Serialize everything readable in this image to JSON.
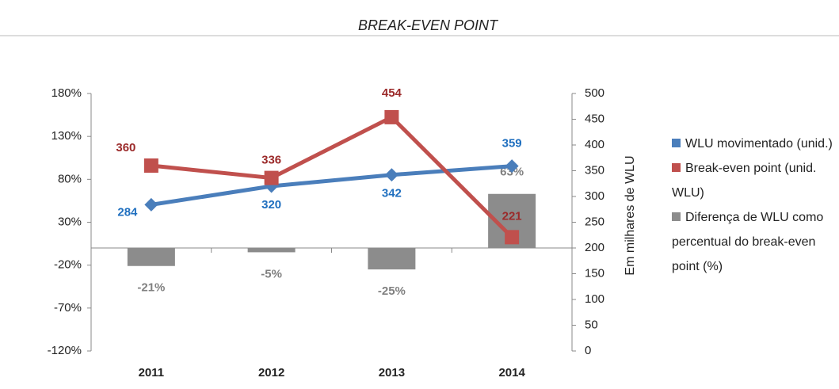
{
  "chart_data": {
    "type": "combo",
    "title": "BREAK-EVEN POINT",
    "categories": [
      "2011",
      "2012",
      "2013",
      "2014"
    ],
    "y2_label": "Em milhares de WLU",
    "ylim": [
      -120,
      180
    ],
    "yticks": [
      {
        "value": -120,
        "label": "-120%"
      },
      {
        "value": -70,
        "label": "-70%"
      },
      {
        "value": -20,
        "label": "-20%"
      },
      {
        "value": 30,
        "label": "30%"
      },
      {
        "value": 80,
        "label": "80%"
      },
      {
        "value": 130,
        "label": "130%"
      },
      {
        "value": 180,
        "label": "180%"
      }
    ],
    "y2lim": [
      0,
      500
    ],
    "y2ticks": [
      0,
      50,
      100,
      150,
      200,
      250,
      300,
      350,
      400,
      450,
      500
    ],
    "series": [
      {
        "name": "WLU movimentado (unid.)",
        "type": "line",
        "axis": "y2",
        "color": "#4a7ebb",
        "label_color": "#1f6fbf",
        "values": [
          284,
          320,
          342,
          359
        ]
      },
      {
        "name": "Break-even point (unid. WLU)",
        "type": "line",
        "axis": "y2",
        "color": "#c0504d",
        "label_color": "#9b2a2a",
        "values": [
          360,
          336,
          454,
          221
        ]
      },
      {
        "name": "Diferença de WLU como percentual do break-even point (%)",
        "type": "bar",
        "axis": "y",
        "color": "#8c8c8c",
        "label_color": "#808080",
        "values": [
          -21,
          -5,
          -25,
          63
        ],
        "value_labels": [
          "-21%",
          "-5%",
          "-25%",
          "63%"
        ]
      }
    ]
  }
}
